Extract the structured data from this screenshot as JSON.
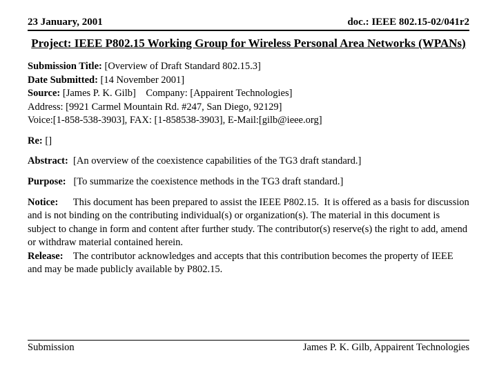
{
  "header": {
    "date": "23 January, 2001",
    "doc": "doc.: IEEE 802.15-02/041r2"
  },
  "project_title": "Project: IEEE P802.15 Working Group for Wireless Personal Area Networks (WPANs)",
  "submission": {
    "title_label": "Submission Title:",
    "title_value": " [Overview of Draft Standard 802.15.3]",
    "date_label": "Date Submitted:",
    "date_value": " [14 November 2001]",
    "source_label": "Source:",
    "source_value": " [James P. K. Gilb]    Company: [Appairent Technologies]",
    "address": "Address: [9921 Carmel Mountain Rd. #247, San Diego, 92129]",
    "contact": "Voice:[1-858-538-3903], FAX: [1-858538-3903], E-Mail:[gilb@ieee.org]"
  },
  "re": {
    "label": "Re:",
    "value": " []"
  },
  "abstract": {
    "label": "Abstract:",
    "value": "  [An overview of the coexistence capabilities of the TG3 draft standard.]"
  },
  "purpose": {
    "label": "Purpose:",
    "value": "   [To summarize the coexistence methods in the TG3 draft standard.]"
  },
  "notice": {
    "label": "Notice:",
    "value": "      This document has been prepared to assist the IEEE P802.15.  It is offered as a basis for discussion and is not binding on the contributing individual(s) or organization(s). The material in this document is subject to change in form and content after further study. The contributor(s) reserve(s) the right to add, amend or withdraw material contained herein."
  },
  "release": {
    "label": "Release:",
    "value": "    The contributor acknowledges and accepts that this contribution becomes the property of IEEE and may be made publicly available by P802.15."
  },
  "footer": {
    "left": "Submission",
    "right": "James P. K. Gilb, Appairent Technologies"
  }
}
